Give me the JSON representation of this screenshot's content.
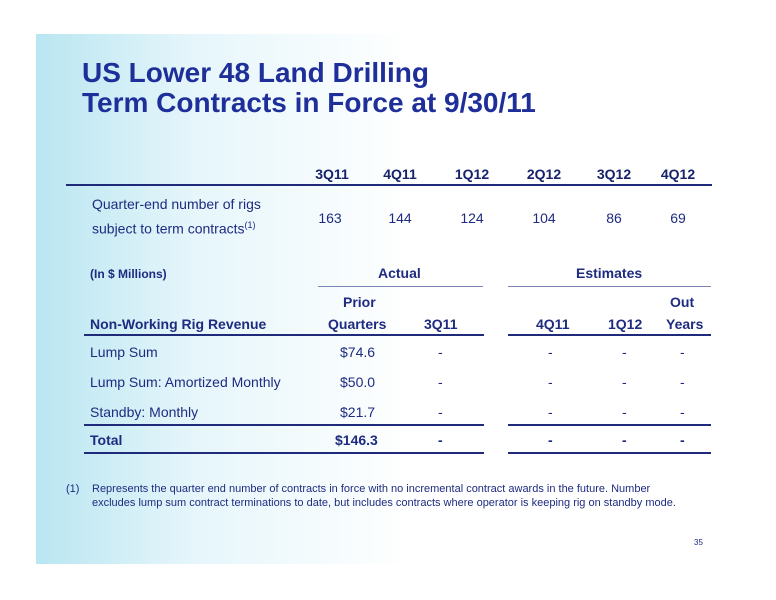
{
  "title": {
    "line1": "US Lower 48 Land Drilling",
    "line2": "Term Contracts in Force at 9/30/11"
  },
  "rigs": {
    "quarters": [
      "3Q11",
      "4Q11",
      "1Q12",
      "2Q12",
      "3Q12",
      "4Q12"
    ],
    "label_line1": "Quarter-end number of rigs",
    "label_line2": "subject to term contracts",
    "footnote_ref": "(1)",
    "values": [
      "163",
      "144",
      "124",
      "104",
      "86",
      "69"
    ]
  },
  "revenue": {
    "units": "(In $ Millions)",
    "group_actual": "Actual",
    "group_estimates": "Estimates",
    "row_header": "Non-Working Rig Revenue",
    "columns": [
      {
        "line1": "Prior",
        "line2": "Quarters"
      },
      {
        "line1": "",
        "line2": "3Q11"
      },
      {
        "line1": "",
        "line2": "4Q11"
      },
      {
        "line1": "",
        "line2": "1Q12"
      },
      {
        "line1": "Out",
        "line2": "Years"
      }
    ],
    "rows": [
      {
        "label": "Lump Sum",
        "prior": "$74.6",
        "q3_11": "-",
        "q4_11": "-",
        "q1_12": "-",
        "out_years": "-"
      },
      {
        "label": "Lump Sum: Amortized Monthly",
        "prior": "$50.0",
        "q3_11": "-",
        "q4_11": "-",
        "q1_12": "-",
        "out_years": "-"
      },
      {
        "label": "Standby: Monthly",
        "prior": "$21.7",
        "q3_11": "-",
        "q4_11": "-",
        "q1_12": "-",
        "out_years": "-"
      }
    ],
    "total": {
      "label": "Total",
      "prior": "$146.3",
      "q3_11": "-",
      "q4_11": "-",
      "q1_12": "-",
      "out_years": "-"
    }
  },
  "footnote": {
    "marker": "(1)",
    "line1": "Represents the quarter end number of contracts in force with no incremental contract awards in the future.   Number",
    "line2": "excludes lump sum contract terminations to date, but includes contracts where operator is keeping rig on standby mode."
  },
  "page_number": "35",
  "colors": {
    "title": "#1e2f9a",
    "text": "#1e2b80",
    "rule": "#1f2a7a",
    "background_gradient_start": "#b9e6f1"
  }
}
